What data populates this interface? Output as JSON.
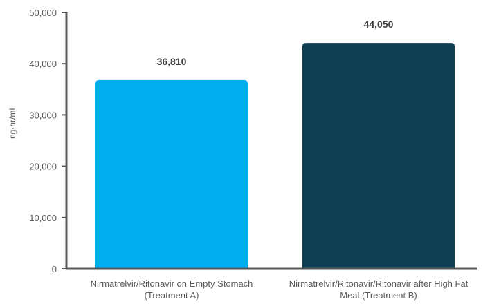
{
  "chart_data": {
    "type": "bar",
    "ylabel": "ng·hr/mL",
    "ylim": [
      0,
      50000
    ],
    "ytick_values": [
      0,
      10000,
      20000,
      30000,
      40000,
      50000
    ],
    "ytick_labels": [
      "0",
      "10,000",
      "20,000",
      "30,000",
      "40,000",
      "50,000"
    ],
    "grid": false,
    "categories": [
      [
        "Nirmatrelvir/Ritonavir on Empty Stomach",
        "(Treatment A)"
      ],
      [
        "Nirmatrelvir/Ritonavir/Ritonavir after High Fat",
        "Meal (Treatment B)"
      ]
    ],
    "values": [
      36810,
      44050
    ],
    "data_labels": [
      "36,810",
      "44,050"
    ],
    "colors": [
      "#00AEEF",
      "#0E3F52"
    ],
    "axis_color": "#595959"
  }
}
